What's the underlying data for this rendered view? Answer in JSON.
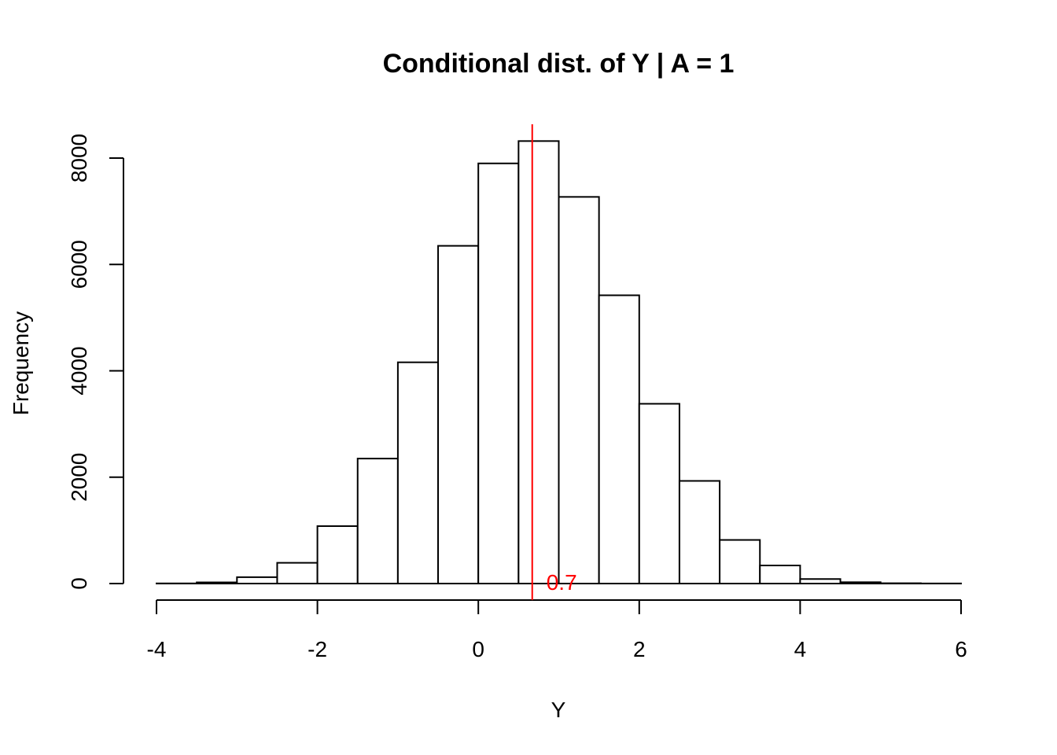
{
  "chart_data": {
    "type": "bar",
    "title": "Conditional dist. of Y | A = 1",
    "xlabel": "Y",
    "ylabel": "Frequency",
    "xlim": [
      -4,
      6
    ],
    "ylim": [
      0,
      8000
    ],
    "x_ticks": [
      -4,
      -2,
      0,
      2,
      4,
      6
    ],
    "y_ticks": [
      0,
      2000,
      4000,
      6000,
      8000
    ],
    "bin_width": 0.5,
    "bins": [
      {
        "start": -4.0,
        "end": -3.5,
        "count": 3
      },
      {
        "start": -3.5,
        "end": -3.0,
        "count": 22
      },
      {
        "start": -3.0,
        "end": -2.5,
        "count": 120
      },
      {
        "start": -2.5,
        "end": -2.0,
        "count": 390
      },
      {
        "start": -2.0,
        "end": -1.5,
        "count": 1080
      },
      {
        "start": -1.5,
        "end": -1.0,
        "count": 2350
      },
      {
        "start": -1.0,
        "end": -0.5,
        "count": 4160
      },
      {
        "start": -0.5,
        "end": 0.0,
        "count": 6350
      },
      {
        "start": 0.0,
        "end": 0.5,
        "count": 7900
      },
      {
        "start": 0.5,
        "end": 1.0,
        "count": 8320
      },
      {
        "start": 1.0,
        "end": 1.5,
        "count": 7270
      },
      {
        "start": 1.5,
        "end": 2.0,
        "count": 5420
      },
      {
        "start": 2.0,
        "end": 2.5,
        "count": 3380
      },
      {
        "start": 2.5,
        "end": 3.0,
        "count": 1930
      },
      {
        "start": 3.0,
        "end": 3.5,
        "count": 820
      },
      {
        "start": 3.5,
        "end": 4.0,
        "count": 340
      },
      {
        "start": 4.0,
        "end": 4.5,
        "count": 85
      },
      {
        "start": 4.5,
        "end": 5.0,
        "count": 25
      },
      {
        "start": 5.0,
        "end": 5.5,
        "count": 6
      },
      {
        "start": 5.5,
        "end": 6.0,
        "count": 2
      }
    ],
    "vline": {
      "x": 0.67,
      "label": "0.7",
      "color": "#ff0000"
    },
    "grid": false,
    "legend": "none"
  }
}
